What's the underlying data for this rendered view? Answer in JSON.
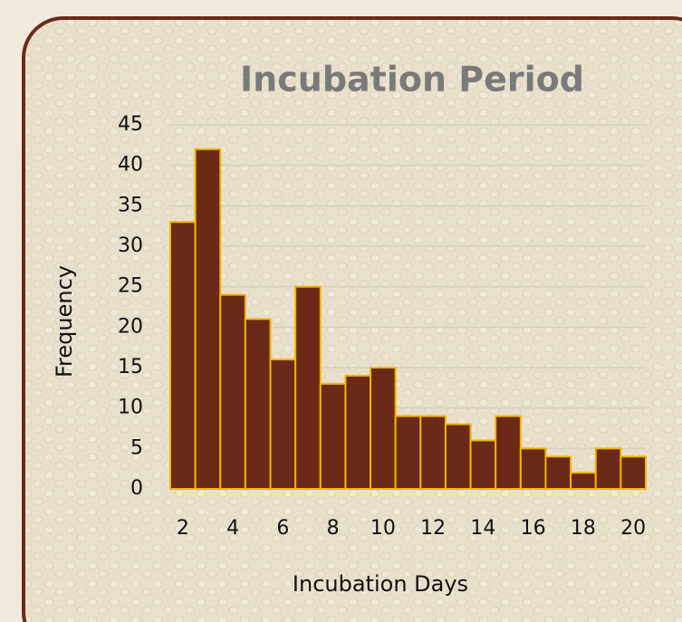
{
  "chart_data": {
    "type": "bar",
    "title": "Incubation Period",
    "x_label": "Incubation Days",
    "y_label": "Frequency",
    "x": [
      2,
      3,
      4,
      5,
      6,
      7,
      8,
      9,
      10,
      11,
      12,
      13,
      14,
      15,
      16,
      17,
      18,
      19,
      20
    ],
    "values": [
      33,
      42,
      24,
      21,
      16,
      25,
      13,
      14,
      15,
      9,
      9,
      8,
      6,
      9,
      5,
      4,
      2,
      5,
      4
    ],
    "color": "#6b2a17",
    "edge_color": "#f2b400",
    "xlim": [
      1.5,
      20.5
    ],
    "xticks": [
      2,
      4,
      6,
      8,
      10,
      12,
      14,
      16,
      18,
      20
    ],
    "ylim": [
      0,
      45
    ],
    "yticks": [
      0,
      5,
      10,
      15,
      20,
      25,
      30,
      35,
      40,
      45
    ],
    "grid": true
  }
}
